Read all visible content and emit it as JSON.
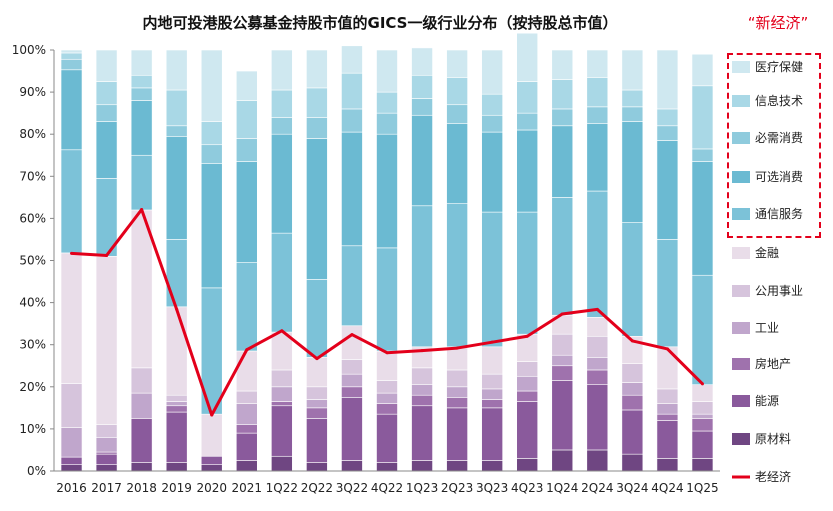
{
  "header": {
    "title": "内地可投港股公募基金持股市值的GICS一级行业分布（按持股总市值）",
    "annotation": "“新经济”"
  },
  "colors": {
    "医疗保健": "#cfe8f0",
    "信息技术": "#a9d8e6",
    "必需消费": "#8fcbdd",
    "可选消费": "#6bbad2",
    "通信服务": "#7cc2d8",
    "金融": "#e9dde9",
    "公用事业": "#d6c4dc",
    "工业": "#c0a6cc",
    "房地产": "#9f72ad",
    "能源": "#8a5a9c",
    "原材料": "#6f4682",
    "老经济": "#e3001b",
    "annotation_border": "#e3001b"
  },
  "chart_data": {
    "type": "bar",
    "stacked": true,
    "title": "内地可投港股公募基金持股市值的GICS一级行业分布（按持股总市值）",
    "categories": [
      "2016",
      "2017",
      "2018",
      "2019",
      "2020",
      "2021",
      "1Q22",
      "2Q22",
      "3Q22",
      "4Q22",
      "1Q23",
      "2Q23",
      "3Q23",
      "4Q23",
      "1Q24",
      "2Q24",
      "3Q24",
      "4Q24",
      "1Q25"
    ],
    "ylim": [
      0,
      100
    ],
    "yticks": [
      "0%",
      "10%",
      "20%",
      "30%",
      "40%",
      "50%",
      "60%",
      "70%",
      "80%",
      "90%",
      "100%"
    ],
    "series": [
      {
        "name": "原材料",
        "values": [
          1.5,
          1.5,
          2,
          2,
          1.5,
          2.5,
          3.5,
          2,
          2.5,
          2,
          2.5,
          2.5,
          2.5,
          3,
          5,
          5,
          4,
          3,
          3
        ]
      },
      {
        "name": "能源",
        "values": [
          1.8,
          2.5,
          10.5,
          12,
          2,
          6.5,
          12,
          10.5,
          15,
          11.5,
          13,
          12.5,
          12.5,
          13.5,
          16.5,
          15.5,
          10.5,
          9,
          6.5
        ]
      },
      {
        "name": "房地产",
        "values": [
          0,
          0.5,
          0,
          1.5,
          0,
          2,
          1,
          2.5,
          2.5,
          2.5,
          2.5,
          2.5,
          2,
          2.5,
          3.5,
          3.5,
          3.5,
          1.5,
          3
        ]
      },
      {
        "name": "工业",
        "values": [
          7,
          3.5,
          6,
          1,
          0,
          5,
          3.5,
          2,
          3,
          2.5,
          2.5,
          2.5,
          2.5,
          3.5,
          2.5,
          3,
          3,
          2.5,
          1
        ]
      },
      {
        "name": "公用事业",
        "values": [
          10.5,
          3,
          6,
          1.5,
          0,
          3,
          4,
          3,
          3.5,
          3,
          4,
          4,
          3.5,
          3.5,
          5,
          5,
          4.5,
          3.5,
          3
        ]
      },
      {
        "name": "金融",
        "values": [
          31,
          40,
          37.5,
          21,
          10,
          9.5,
          9,
          7,
          8,
          7,
          5,
          5.5,
          6.5,
          6.5,
          4.5,
          4.5,
          6.5,
          10,
          4
        ]
      },
      {
        "name": "通信服务",
        "values": [
          24.5,
          18.5,
          13,
          16,
          30,
          21,
          23.5,
          18.5,
          19,
          24.5,
          33.5,
          34,
          32,
          29,
          28,
          30,
          27,
          25.5,
          26
        ]
      },
      {
        "name": "可选消费",
        "values": [
          19,
          13.5,
          13,
          24.5,
          29.5,
          24,
          23.5,
          33.5,
          27,
          27,
          21.5,
          19,
          19,
          19.5,
          17,
          16,
          24,
          23.5,
          27
        ]
      },
      {
        "name": "必需消费",
        "values": [
          2.5,
          4,
          3,
          2.5,
          4.5,
          5.5,
          4,
          5,
          5.5,
          5,
          4,
          4.5,
          4,
          4,
          4,
          4,
          3.5,
          3.5,
          3
        ]
      },
      {
        "name": "信息技术",
        "values": [
          1.5,
          5.5,
          3,
          8.5,
          5.5,
          9,
          6.5,
          7,
          8.5,
          5,
          5.5,
          6.5,
          5,
          7.5,
          7,
          7,
          4,
          4,
          15
        ]
      },
      {
        "name": "医疗保健",
        "values": [
          0.7,
          7.5,
          6,
          9.5,
          17,
          7,
          9.5,
          9,
          6.5,
          10,
          6.5,
          6.5,
          10.5,
          11.5,
          7,
          6.5,
          9.5,
          14,
          7.5
        ]
      }
    ],
    "line": {
      "name": "老经济",
      "values": [
        51.7,
        51.2,
        62.1,
        38.4,
        13.3,
        28.8,
        33.3,
        26.7,
        32.4,
        28.1,
        28.6,
        29.2,
        30.6,
        32.0,
        37.3,
        38.4,
        30.9,
        29.0,
        20.7
      ]
    },
    "legend": {
      "placement": "right",
      "items": [
        {
          "label": "医疗保健",
          "key": "医疗保健",
          "marker": "swatch"
        },
        {
          "label": "信息技术",
          "key": "信息技术",
          "marker": "swatch"
        },
        {
          "label": "必需消费",
          "key": "必需消费",
          "marker": "swatch"
        },
        {
          "label": "可选消费",
          "key": "可选消费",
          "marker": "swatch"
        },
        {
          "label": "通信服务",
          "key": "通信服务",
          "marker": "swatch"
        },
        {
          "label": "金融",
          "key": "金融",
          "marker": "swatch"
        },
        {
          "label": "公用事业",
          "key": "公用事业",
          "marker": "swatch"
        },
        {
          "label": "工业",
          "key": "工业",
          "marker": "swatch"
        },
        {
          "label": "房地产",
          "key": "房地产",
          "marker": "swatch"
        },
        {
          "label": "能源",
          "key": "能源",
          "marker": "swatch"
        },
        {
          "label": "原材料",
          "key": "原材料",
          "marker": "swatch"
        },
        {
          "label": "老经济",
          "key": "老经济",
          "marker": "line"
        }
      ]
    },
    "grid": false
  }
}
